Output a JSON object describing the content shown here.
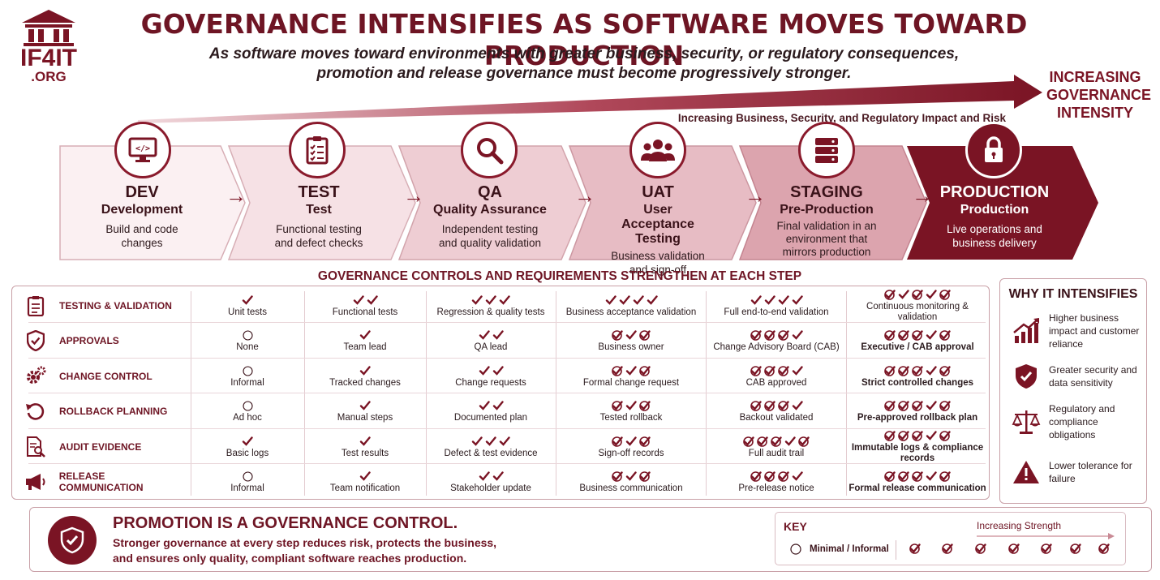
{
  "logo": {
    "text": "IF4IT",
    "sub": ".ORG"
  },
  "title": "GOVERNANCE INTENSIFIES AS SOFTWARE MOVES TOWARD PRODUCTION",
  "subtitle_line1": "As software moves toward environments with greater business, security, or regulatory consequences,",
  "subtitle_line2": "promotion and release governance must become progressively stronger.",
  "intensity_label": "INCREASING GOVERNANCE INTENSITY",
  "impact_label": "Increasing Business, Security, and Regulatory Impact and Risk",
  "stages": [
    {
      "code": "DEV",
      "name": "Development",
      "desc": "Build and code changes",
      "icon": "code-monitor-icon"
    },
    {
      "code": "TEST",
      "name": "Test",
      "desc": "Functional testing and defect checks",
      "icon": "checklist-icon"
    },
    {
      "code": "QA",
      "name": "Quality Assurance",
      "desc": "Independent testing and quality validation",
      "icon": "magnifier-icon"
    },
    {
      "code": "UAT",
      "name": "User Acceptance Testing",
      "desc": "Business validation and sign-off",
      "icon": "users-icon"
    },
    {
      "code": "STAGING",
      "name": "Pre-Production",
      "desc": "Final validation in an environment that mirrors production",
      "icon": "server-icon"
    },
    {
      "code": "PRODUCTION",
      "name": "Production",
      "desc": "Live operations and business delivery",
      "icon": "lock-icon"
    }
  ],
  "controls_heading": "GOVERNANCE CONTROLS AND REQUIREMENTS STRENGTHEN AT EACH STEP",
  "rows": [
    {
      "label": "TESTING & VALIDATION",
      "icon": "clipboard-icon",
      "cells": [
        {
          "text": "Unit tests",
          "level": 1
        },
        {
          "text": "Functional tests",
          "level": 2
        },
        {
          "text": "Regression & quality tests",
          "level": 3
        },
        {
          "text": "Business acceptance validation",
          "level": 4
        },
        {
          "text": "Full end-to-end validation",
          "level": 4
        },
        {
          "text": "Continuous monitoring & validation",
          "level": 5
        }
      ]
    },
    {
      "label": "APPROVALS",
      "icon": "shield-check-icon",
      "cells": [
        {
          "text": "None",
          "level": 0
        },
        {
          "text": "Team lead",
          "level": 1
        },
        {
          "text": "QA lead",
          "level": 2
        },
        {
          "text": "Business owner",
          "level": 3
        },
        {
          "text": "Change Advisory Board (CAB)",
          "level": 4
        },
        {
          "text": "Executive / CAB approval",
          "level": 5
        }
      ]
    },
    {
      "label": "CHANGE CONTROL",
      "icon": "gears-icon",
      "cells": [
        {
          "text": "Informal",
          "level": 0
        },
        {
          "text": "Tracked changes",
          "level": 1
        },
        {
          "text": "Change requests",
          "level": 2
        },
        {
          "text": "Formal change request",
          "level": 3
        },
        {
          "text": "CAB approved",
          "level": 4
        },
        {
          "text": "Strict controlled changes",
          "level": 5
        }
      ]
    },
    {
      "label": "ROLLBACK PLANNING",
      "icon": "rollback-icon",
      "cells": [
        {
          "text": "Ad hoc",
          "level": 0
        },
        {
          "text": "Manual steps",
          "level": 1
        },
        {
          "text": "Documented plan",
          "level": 2
        },
        {
          "text": "Tested rollback",
          "level": 3
        },
        {
          "text": "Backout validated",
          "level": 4
        },
        {
          "text": "Pre-approved rollback plan",
          "level": 5
        }
      ]
    },
    {
      "label": "AUDIT EVIDENCE",
      "icon": "document-search-icon",
      "cells": [
        {
          "text": "Basic logs",
          "level": 1
        },
        {
          "text": "Test results",
          "level": 1
        },
        {
          "text": "Defect & test evidence",
          "level": 3
        },
        {
          "text": "Sign-off records",
          "level": 3
        },
        {
          "text": "Full audit trail",
          "level": 5
        },
        {
          "text": "Immutable logs & compliance records",
          "level": 5
        }
      ]
    },
    {
      "label": "RELEASE COMMUNICATION",
      "icon": "megaphone-icon",
      "cells": [
        {
          "text": "Informal",
          "level": 0
        },
        {
          "text": "Team notification",
          "level": 1
        },
        {
          "text": "Stakeholder update",
          "level": 2
        },
        {
          "text": "Business communication",
          "level": 3
        },
        {
          "text": "Pre-release notice",
          "level": 4
        },
        {
          "text": "Formal release communication",
          "level": 5
        }
      ]
    }
  ],
  "why": {
    "title": "WHY IT INTENSIFIES",
    "items": [
      {
        "text": "Higher business impact and customer reliance",
        "icon": "growth-chart-icon"
      },
      {
        "text": "Greater security and data sensitivity",
        "icon": "shield-check-icon"
      },
      {
        "text": "Regulatory and compliance obligations",
        "icon": "scales-icon"
      },
      {
        "text": "Lower tolerance for failure",
        "icon": "warning-icon"
      }
    ]
  },
  "promo": {
    "title": "PROMOTION IS A GOVERNANCE CONTROL.",
    "line1": "Stronger governance at every step reduces risk, protects the business,",
    "line2": "and ensures only quality, compliant software reaches production."
  },
  "key": {
    "title": "KEY",
    "strength": "Increasing Strength",
    "minimal": "Minimal / Informal",
    "levels": 7
  },
  "colors": {
    "accent": "#7a1424",
    "accent_light": "#f3dfe2",
    "text": "#3a1219"
  }
}
